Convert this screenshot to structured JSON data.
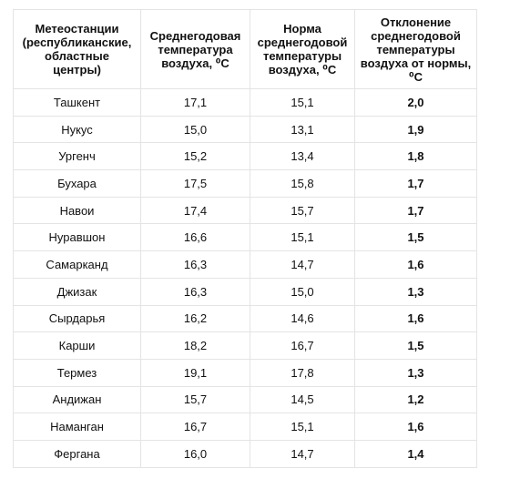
{
  "table": {
    "headers": [
      "Метеостанции\n(республиканские,\nобластные\nцентры)",
      "Среднегодовая\nтемпература\nвоздуха, ⁰С",
      "Норма\nсреднегодовой\nтемпературы\nвоздуха, ⁰С",
      "Отклонение\nсреднегодовой\nтемпературы\nвоздуха от нормы,\n⁰С"
    ],
    "rows": [
      [
        "Ташкент",
        "17,1",
        "15,1",
        "2,0"
      ],
      [
        "Нукус",
        "15,0",
        "13,1",
        "1,9"
      ],
      [
        "Ургенч",
        "15,2",
        "13,4",
        "1,8"
      ],
      [
        "Бухара",
        "17,5",
        "15,8",
        "1,7"
      ],
      [
        "Навои",
        "17,4",
        "15,7",
        "1,7"
      ],
      [
        "Нуравшон",
        "16,6",
        "15,1",
        "1,5"
      ],
      [
        "Самарканд",
        "16,3",
        "14,7",
        "1,6"
      ],
      [
        "Джизак",
        "16,3",
        "15,0",
        "1,3"
      ],
      [
        "Сырдарья",
        "16,2",
        "14,6",
        "1,6"
      ],
      [
        "Карши",
        "18,2",
        "16,7",
        "1,5"
      ],
      [
        "Термез",
        "19,1",
        "17,8",
        "1,3"
      ],
      [
        "Андижан",
        "15,7",
        "14,5",
        "1,2"
      ],
      [
        "Наманган",
        "16,7",
        "15,1",
        "1,6"
      ],
      [
        "Фергана",
        "16,0",
        "14,7",
        "1,4"
      ]
    ]
  }
}
